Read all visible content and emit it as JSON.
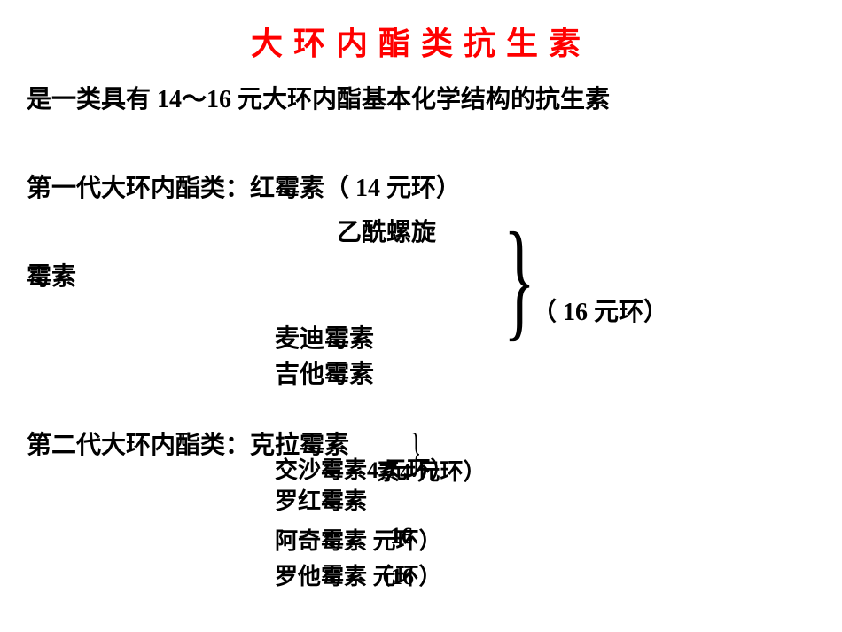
{
  "title": "大环内酯类抗生素",
  "subtitle": "是一类具有 14～16 元大环内酯基本化学结构的抗生素",
  "gen1": {
    "label": "第一代大环内酯类：红霉素（ 14 元环）",
    "item0": "乙酰螺旋",
    "item0b": "霉素",
    "item1": "麦迪霉素",
    "item2": "吉他霉素",
    "ring": "（ 16 元环）"
  },
  "gen2": {
    "label": "第二代大环内酯类：克拉霉素",
    "item0": "交沙霉素4 元环）",
    "item1": "罗红霉素",
    "item2": "阿奇霉素 元环）",
    "item3": "罗他霉素 元环）",
    "ring14": "素4 元环）",
    "ring16a": "16",
    "ring16b": "（16"
  },
  "colors": {
    "title": "#ff0000",
    "text": "#000000",
    "background": "#ffffff"
  },
  "typography": {
    "title_fontsize": 36,
    "body_fontsize": 28,
    "font_family": "SimSun",
    "title_letter_spacing": 12
  }
}
